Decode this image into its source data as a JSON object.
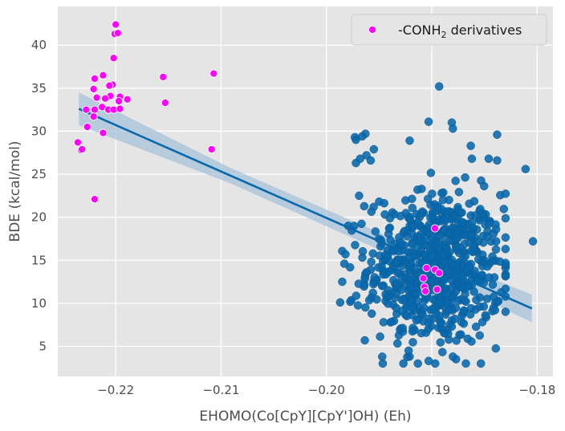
{
  "chart_data": {
    "type": "scatter",
    "xlabel": "EHOMO(Co[CpY][CpY']OH) (Eh)",
    "ylabel": "BDE (kcal/mol)",
    "xlim": [
      -0.2255,
      -0.1785
    ],
    "ylim": [
      1.5,
      44.5
    ],
    "x_ticks": [
      -0.22,
      -0.21,
      -0.2,
      -0.19,
      -0.18
    ],
    "x_tick_labels": [
      "−0.22",
      "−0.21",
      "−0.20",
      "−0.19",
      "−0.18"
    ],
    "y_ticks": [
      5,
      10,
      15,
      20,
      25,
      30,
      35,
      40
    ],
    "y_tick_labels": [
      "5",
      "10",
      "15",
      "20",
      "25",
      "30",
      "35",
      "40"
    ],
    "grid": true,
    "background": "#e5e5e5",
    "legend": {
      "position": "top-right",
      "prefix": "-CONH",
      "subscript": "2",
      "suffix": " derivatives"
    },
    "regression": {
      "x": [
        -0.2235,
        -0.1805
      ],
      "y": [
        32.6,
        9.4
      ],
      "color": "#0868ac",
      "ci_color": "#a6c3d9",
      "ci_halfwidth": [
        1.9,
        0.9,
        1.0,
        1.6
      ]
    },
    "series": [
      {
        "name": "-CONH2 derivatives",
        "color": "#ff00ff",
        "points": [
          [
            -0.22,
            42.4
          ],
          [
            -0.2201,
            41.3
          ],
          [
            -0.2198,
            41.4
          ],
          [
            -0.2202,
            38.5
          ],
          [
            -0.2107,
            36.7
          ],
          [
            -0.2155,
            36.3
          ],
          [
            -0.2212,
            36.5
          ],
          [
            -0.222,
            36.1
          ],
          [
            -0.2203,
            35.4
          ],
          [
            -0.2206,
            35.3
          ],
          [
            -0.2221,
            34.9
          ],
          [
            -0.2196,
            34.0
          ],
          [
            -0.2205,
            34.1
          ],
          [
            -0.2218,
            33.9
          ],
          [
            -0.221,
            33.8
          ],
          [
            -0.2189,
            33.7
          ],
          [
            -0.2197,
            33.5
          ],
          [
            -0.2153,
            33.3
          ],
          [
            -0.2213,
            32.8
          ],
          [
            -0.2207,
            32.5
          ],
          [
            -0.2202,
            32.5
          ],
          [
            -0.2196,
            32.6
          ],
          [
            -0.222,
            32.5
          ],
          [
            -0.2228,
            32.5
          ],
          [
            -0.2221,
            31.7
          ],
          [
            -0.2227,
            30.5
          ],
          [
            -0.2212,
            29.8
          ],
          [
            -0.2236,
            28.7
          ],
          [
            -0.2233,
            27.8
          ],
          [
            -0.2232,
            27.9
          ],
          [
            -0.2109,
            27.9
          ],
          [
            -0.222,
            22.1
          ],
          [
            -0.1897,
            18.7
          ],
          [
            -0.1905,
            14.1
          ],
          [
            -0.1897,
            13.9
          ],
          [
            -0.1893,
            13.5
          ],
          [
            -0.1908,
            12.9
          ],
          [
            -0.1907,
            11.9
          ],
          [
            -0.1906,
            11.4
          ],
          [
            -0.1895,
            11.6
          ]
        ]
      }
    ],
    "bulk_cloud": {
      "color": "#0868ac",
      "seed": 12345,
      "count": 720,
      "x_mean": -0.1897,
      "x_sd": 0.0032,
      "y_mean": 14.0,
      "y_sd": 4.4,
      "x_range": [
        -0.1985,
        -0.183
      ],
      "y_range": [
        3.0,
        25.5
      ]
    },
    "extra_points": [
      [
        -0.1893,
        35.2
      ],
      [
        -0.1903,
        31.1
      ],
      [
        -0.1881,
        31.0
      ],
      [
        -0.188,
        30.3
      ],
      [
        -0.1963,
        29.7
      ],
      [
        -0.1966,
        29.4
      ],
      [
        -0.1973,
        29.3
      ],
      [
        -0.1972,
        29.0
      ],
      [
        -0.1838,
        29.6
      ],
      [
        -0.1921,
        28.9
      ],
      [
        -0.1863,
        28.3
      ],
      [
        -0.1955,
        27.9
      ],
      [
        -0.1962,
        27.2
      ],
      [
        -0.1968,
        26.8
      ],
      [
        -0.1958,
        26.6
      ],
      [
        -0.1862,
        26.8
      ],
      [
        -0.1846,
        26.8
      ],
      [
        -0.1838,
        26.6
      ],
      [
        -0.1811,
        25.6
      ],
      [
        -0.1972,
        26.3
      ],
      [
        -0.1969,
        22.5
      ],
      [
        -0.1982,
        15.7
      ],
      [
        -0.1983,
        14.6
      ],
      [
        -0.1985,
        12.5
      ],
      [
        -0.1987,
        10.1
      ],
      [
        -0.1839,
        18.6
      ],
      [
        -0.184,
        9.2
      ],
      [
        -0.1804,
        17.2
      ],
      [
        -0.1877,
        3.5
      ],
      [
        -0.188,
        3.8
      ],
      [
        -0.1903,
        3.3
      ],
      [
        -0.1922,
        4.5
      ]
    ]
  }
}
